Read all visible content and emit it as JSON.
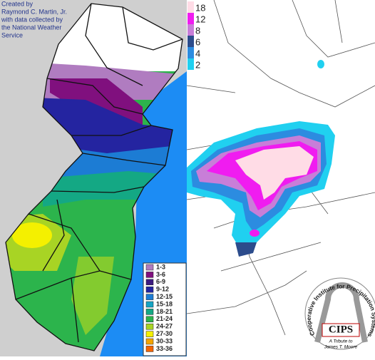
{
  "credit": {
    "lines": [
      "Created by",
      "Raymond C. Martin, Jr.",
      "with data collected by",
      "the National Weather",
      "Service"
    ]
  },
  "snowfall_legend": {
    "items": [
      {
        "label": "1-3",
        "color": "#b07cc0"
      },
      {
        "label": "3-6",
        "color": "#80107e"
      },
      {
        "label": "6-9",
        "color": "#3c1a80"
      },
      {
        "label": "9-12",
        "color": "#2424a0"
      },
      {
        "label": "12-15",
        "color": "#1c7cd4"
      },
      {
        "label": "15-18",
        "color": "#16a4c4"
      },
      {
        "label": "18-21",
        "color": "#14a884"
      },
      {
        "label": "21-24",
        "color": "#2cb44c"
      },
      {
        "label": "24-27",
        "color": "#a8d424"
      },
      {
        "label": "27-30",
        "color": "#f4f000"
      },
      {
        "label": "30-33",
        "color": "#f4a400"
      },
      {
        "label": "33-36",
        "color": "#f46400"
      }
    ]
  },
  "model_legend": {
    "items": [
      {
        "label": "18",
        "color": "#ffdce6"
      },
      {
        "label": "12",
        "color": "#f01cf0"
      },
      {
        "label": "8",
        "color": "#c87ed8"
      },
      {
        "label": "6",
        "color": "#2c4c8c"
      },
      {
        "label": "4",
        "color": "#2c8ce0"
      },
      {
        "label": "2",
        "color": "#20d0f0"
      }
    ]
  },
  "logo": {
    "name": "CIPS",
    "arc_text": "Cooperative Institute for Precipitation Systems",
    "tribute": "A Tribute to",
    "person": "James T. Moore"
  }
}
